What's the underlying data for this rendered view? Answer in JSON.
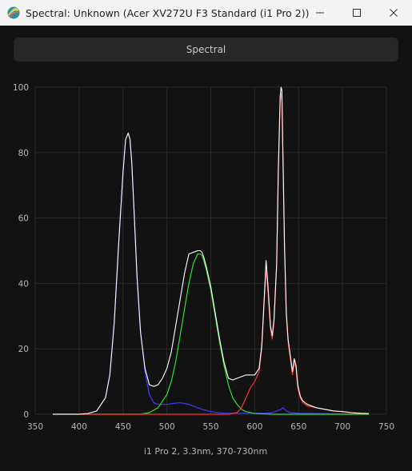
{
  "window": {
    "title": "Spectral: Unknown (Acer XV272U F3 Standard (i1 Pro 2))",
    "icon": "spectral-app-icon",
    "controls": [
      "minimize-icon",
      "maximize-icon",
      "close-icon"
    ]
  },
  "tab": {
    "label": "Spectral"
  },
  "colors": {
    "background": "#121212",
    "grid": "#2a2a2a",
    "axis_text": "#b8b8b8",
    "total": "#ffffff",
    "blue": "#3a3aff",
    "green": "#33dd33",
    "red": "#ff3030"
  },
  "chart_data": {
    "type": "line",
    "title": "",
    "xlabel": "i1 Pro 2, 3.3nm, 370-730nm",
    "ylabel": "",
    "xlim": [
      350,
      750
    ],
    "ylim": [
      0,
      100
    ],
    "x_ticks": [
      350,
      400,
      450,
      500,
      550,
      600,
      650,
      700,
      750
    ],
    "y_ticks": [
      0,
      20,
      40,
      60,
      80,
      100
    ],
    "grid": true,
    "series": [
      {
        "name": "",
        "color": "#3a3aff",
        "x": [
          370,
          400,
          410,
          420,
          430,
          435,
          440,
          445,
          450,
          453,
          456,
          458,
          460,
          463,
          466,
          470,
          475,
          480,
          485,
          490,
          495,
          500,
          505,
          510,
          515,
          520,
          525,
          530,
          535,
          540,
          550,
          560,
          570,
          580,
          590,
          600,
          610,
          620,
          630,
          632,
          635,
          640,
          650,
          700,
          730
        ],
        "y": [
          0,
          0,
          0.2,
          1,
          5,
          12,
          28,
          52,
          74,
          84,
          86,
          84,
          77,
          60,
          42,
          25,
          13,
          6,
          3.5,
          3,
          3,
          3,
          3.2,
          3.4,
          3.5,
          3.3,
          3,
          2.5,
          2,
          1.5,
          0.8,
          0.4,
          0.3,
          0.3,
          0.3,
          0.3,
          0.3,
          0.5,
          1.5,
          2,
          1.2,
          0.5,
          0.3,
          0.1,
          0
        ]
      },
      {
        "name": "",
        "color": "#33dd33",
        "x": [
          370,
          470,
          480,
          490,
          500,
          505,
          510,
          515,
          520,
          525,
          530,
          535,
          538,
          540,
          542,
          545,
          550,
          555,
          560,
          565,
          570,
          575,
          580,
          585,
          590,
          600,
          620,
          650,
          730
        ],
        "y": [
          0,
          0,
          0.5,
          2,
          6,
          10,
          16,
          24,
          32,
          40,
          46,
          49,
          49,
          48.5,
          47,
          44,
          38,
          30,
          22,
          15,
          9,
          5,
          3,
          1.5,
          0.8,
          0.2,
          0,
          0,
          0
        ]
      },
      {
        "name": "",
        "color": "#ff3030",
        "x": [
          370,
          570,
          580,
          585,
          590,
          595,
          600,
          605,
          608,
          611,
          613,
          615,
          618,
          620,
          622,
          625,
          627,
          629,
          630,
          631,
          632,
          634,
          636,
          638,
          640,
          643,
          645,
          647,
          649,
          652,
          655,
          660,
          670,
          680,
          690,
          700,
          710,
          720,
          730
        ],
        "y": [
          0,
          0,
          0.5,
          2,
          5,
          8,
          10,
          13,
          20,
          35,
          44,
          38,
          26,
          23,
          28,
          45,
          75,
          95,
          98,
          96,
          80,
          50,
          30,
          22,
          18,
          12,
          16,
          14,
          8,
          5,
          3.5,
          2.5,
          2,
          1.5,
          1,
          0.8,
          0.5,
          0.3,
          0.2
        ]
      },
      {
        "name": "",
        "color": "#ffffff",
        "x": [
          370,
          400,
          410,
          420,
          430,
          435,
          440,
          445,
          450,
          453,
          456,
          458,
          460,
          463,
          466,
          470,
          475,
          480,
          485,
          490,
          495,
          500,
          505,
          510,
          515,
          520,
          525,
          530,
          535,
          538,
          540,
          542,
          545,
          550,
          555,
          560,
          565,
          570,
          575,
          580,
          585,
          590,
          595,
          600,
          605,
          608,
          611,
          613,
          615,
          618,
          620,
          622,
          625,
          627,
          629,
          630,
          631,
          632,
          634,
          636,
          638,
          640,
          643,
          645,
          647,
          649,
          652,
          655,
          660,
          670,
          680,
          690,
          700,
          710,
          720,
          730
        ],
        "y": [
          0,
          0,
          0.2,
          1,
          5,
          12,
          28,
          52,
          74,
          84,
          86,
          84,
          77,
          60,
          42,
          25,
          14,
          9,
          8.5,
          9,
          11,
          14,
          19,
          27,
          35,
          43,
          49,
          49.5,
          50,
          50,
          49.5,
          48,
          45,
          39,
          31,
          23,
          16,
          11,
          10.5,
          11,
          11.5,
          12,
          12,
          12,
          14,
          21,
          36,
          47,
          40,
          27,
          24,
          29,
          46,
          76,
          97,
          100,
          99,
          82,
          51,
          31,
          23,
          19,
          13,
          17,
          15,
          9,
          5.5,
          4,
          3,
          2,
          1.5,
          1,
          0.8,
          0.5,
          0.3,
          0.2
        ]
      }
    ]
  }
}
